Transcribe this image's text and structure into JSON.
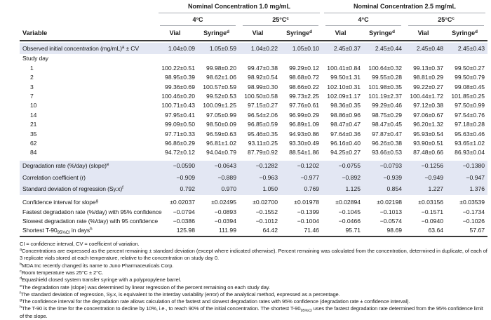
{
  "table": {
    "variable_header": "Variable",
    "groups": [
      {
        "label": "Nominal Concentration 1.0 mg/mL"
      },
      {
        "label": "Nominal Concentration 2.5 mg/mL"
      }
    ],
    "temps": [
      {
        "label": "4°C",
        "sup": ""
      },
      {
        "label": "25°C",
        "sup": "c"
      },
      {
        "label": "4°C",
        "sup": ""
      },
      {
        "label": "25°C",
        "sup": "c"
      }
    ],
    "columns": [
      {
        "label": "Vial",
        "sup": ""
      },
      {
        "label": "Syringe",
        "sup": "d"
      },
      {
        "label": "Vial",
        "sup": ""
      },
      {
        "label": "Syringe",
        "sup": "d"
      },
      {
        "label": "Vial",
        "sup": ""
      },
      {
        "label": "Syringe",
        "sup": "d"
      },
      {
        "label": "Vial",
        "sup": ""
      },
      {
        "label": "Syringe",
        "sup": "d"
      }
    ],
    "rows": [
      {
        "type": "highlight",
        "label": "Observed initial concentration (mg/mL)",
        "sup": "a",
        "mid": " ± CV",
        "values": [
          "1.04±0.09",
          "1.05±0.59",
          "1.04±0.22",
          "1.05±0.10",
          "2.45±0.37",
          "2.45±0.44",
          "2.45±0.48",
          "2.45±0.43"
        ]
      },
      {
        "type": "section",
        "label": "Study day",
        "values": []
      },
      {
        "type": "day",
        "label": "1",
        "values": [
          "100.22±0.51",
          "99.98±0.20",
          "99.47±0.38",
          "99.29±0.12",
          "100.41±0.84",
          "100.64±0.32",
          "99.13±0.37",
          "99.50±0.27"
        ]
      },
      {
        "type": "day",
        "label": "2",
        "values": [
          "98.95±0.39",
          "98.62±1.06",
          "98.92±0.54",
          "98.68±0.72",
          "99.50±1.31",
          "99.55±0.28",
          "98.81±0.29",
          "99.50±0.79"
        ]
      },
      {
        "type": "day",
        "label": "3",
        "values": [
          "99.36±0.69",
          "100.57±0.59",
          "98.99±0.30",
          "98.66±0.22",
          "102.10±0.31",
          "101.98±0.35",
          "99.22±0.27",
          "99.08±0.45"
        ]
      },
      {
        "type": "day",
        "label": "7",
        "values": [
          "100.46±0.20",
          "99.52±0.53",
          "100.50±0.58",
          "99.73±2.25",
          "102.09±1.17",
          "101.19±2.37",
          "100.44±1.72",
          "101.85±0.25"
        ]
      },
      {
        "type": "day",
        "label": "10",
        "values": [
          "100.71±0.43",
          "100.09±1.25",
          "97.15±0.27",
          "97.76±0.61",
          "98.36±0.35",
          "99.29±0.46",
          "97.12±0.38",
          "97.50±0.99"
        ]
      },
      {
        "type": "day",
        "label": "14",
        "values": [
          "97.95±0.41",
          "97.05±0.99",
          "96.54±2.06",
          "96.99±0.29",
          "98.86±0.96",
          "98.75±0.29",
          "97.06±0.67",
          "97.54±0.76"
        ]
      },
      {
        "type": "day",
        "label": "21",
        "values": [
          "99.09±0.50",
          "98.50±0.09",
          "96.85±0.59",
          "96.89±1.09",
          "98.47±0.47",
          "98.47±0.45",
          "96.20±1.32",
          "97.18±0.28"
        ]
      },
      {
        "type": "day",
        "label": "35",
        "values": [
          "97.71±0.33",
          "96.59±0.63",
          "95.46±0.35",
          "94.93±0.86",
          "97.64±0.36",
          "97.87±0.47",
          "95.93±0.54",
          "95.63±0.46"
        ]
      },
      {
        "type": "day",
        "label": "62",
        "values": [
          "96.86±0.29",
          "96.81±1.02",
          "93.11±0.25",
          "93.30±0.49",
          "96.16±0.40",
          "96.26±0.38",
          "93.90±0.51",
          "93.65±1.02"
        ]
      },
      {
        "type": "day",
        "label": "84",
        "values": [
          "94.72±0.12",
          "94.04±0.79",
          "87.79±0.92",
          "88.54±1.86",
          "94.25±0.27",
          "93.66±0.53",
          "87.48±0.66",
          "86.93±0.04"
        ]
      },
      {
        "type": "highlight",
        "gap": true,
        "label": "Degradation rate (%/day) (slope)",
        "sup": "e",
        "values": [
          "−0.0590",
          "−0.0643",
          "−0.1282",
          "−0.1202",
          "−0.0755",
          "−0.0793",
          "−0.1256",
          "−0.1380"
        ]
      },
      {
        "type": "highlight",
        "label": "Correlation coefficient (r)",
        "values": [
          "−0.909",
          "−0.889",
          "−0.963",
          "−0.977",
          "−0.892",
          "−0.939",
          "−0.949",
          "−0.947"
        ]
      },
      {
        "type": "highlight",
        "label": "Standard deviation of regression (Sy.x)",
        "sup": "f",
        "values": [
          "0.792",
          "0.970",
          "1.050",
          "0.769",
          "1.125",
          "0.854",
          "1.227",
          "1.376"
        ]
      },
      {
        "type": "plain",
        "gap": true,
        "label": "Confidence interval for slope",
        "sup": "g",
        "values": [
          "±0.02037",
          "±0.02495",
          "±0.02700",
          "±0.01978",
          "±0.02894",
          "±0.02198",
          "±0.03156",
          "±0.03539"
        ]
      },
      {
        "type": "plain",
        "label": "Fastest degradation rate (%/day) with 95% confidence",
        "values": [
          "−0.0794",
          "−0.0893",
          "−0.1552",
          "−0.1399",
          "−0.1045",
          "−0.1013",
          "−0.1571",
          "−0.1734"
        ]
      },
      {
        "type": "plain",
        "label": "Slowest degradation rate (%/day) with 95 confidence",
        "values": [
          "−0.0386",
          "−0.0394",
          "−0.1012",
          "−0.1004",
          "−0.0466",
          "−0.0574",
          "−0.0940",
          "−0.1026"
        ]
      },
      {
        "type": "plain",
        "label": "Shortest T-90",
        "sub": "95%CI",
        "mid": " in days",
        "sup2": "h",
        "values": [
          "125.98",
          "111.99",
          "64.42",
          "71.46",
          "95.71",
          "98.69",
          "63.64",
          "57.67"
        ]
      }
    ]
  },
  "footnotes": [
    {
      "marker": "",
      "text": "CI = confidence interval, CV = coefficient of variation."
    },
    {
      "marker": "a",
      "text": "Concentrations are expressed as the percent remaining ± standard deviation (except where indicated otherwise). Percent remaining was calculated from the concentration, determined in duplicate, of each of 3 replicate vials stored at each temperature, relative to the concentration on study day 0."
    },
    {
      "marker": "b",
      "text": "MDA Inc recently changed its name to Juno Pharmaceuticals Corp."
    },
    {
      "marker": "c",
      "text": "Room temperature was 25°C ± 2°C."
    },
    {
      "marker": "d",
      "text": "Equashield closed system transfer syringe with a polypropylene barrel."
    },
    {
      "marker": "e",
      "text": "The degradation rate (slope) was determined by linear regression of the percent remaining on each study day."
    },
    {
      "marker": "f",
      "text": "The standard deviation of regression, Sy.x, is equivalent to the interday variability (error) of the analytical method, expressed as a percentage."
    },
    {
      "marker": "g",
      "text": "The confidence interval for the degradation rate allows calculation of the fastest and slowest degradation rates with 95% confidence (degradation rate ± confidence interval)."
    },
    {
      "marker": "h",
      "text": "The T-90 is the time for the concentration to decline by 10%, i.e., to reach 90% of the initial concentration. The shortest T-90",
      "sub": "95%CI",
      "text2": " uses the fastest degradation rate determined from the 95% confidence limit of the slope."
    }
  ],
  "colors": {
    "row_highlight": "#e3e7f3",
    "rule_dark": "#3a3a3a",
    "rule_light": "#a9adb3",
    "text": "#1a1a1a"
  }
}
